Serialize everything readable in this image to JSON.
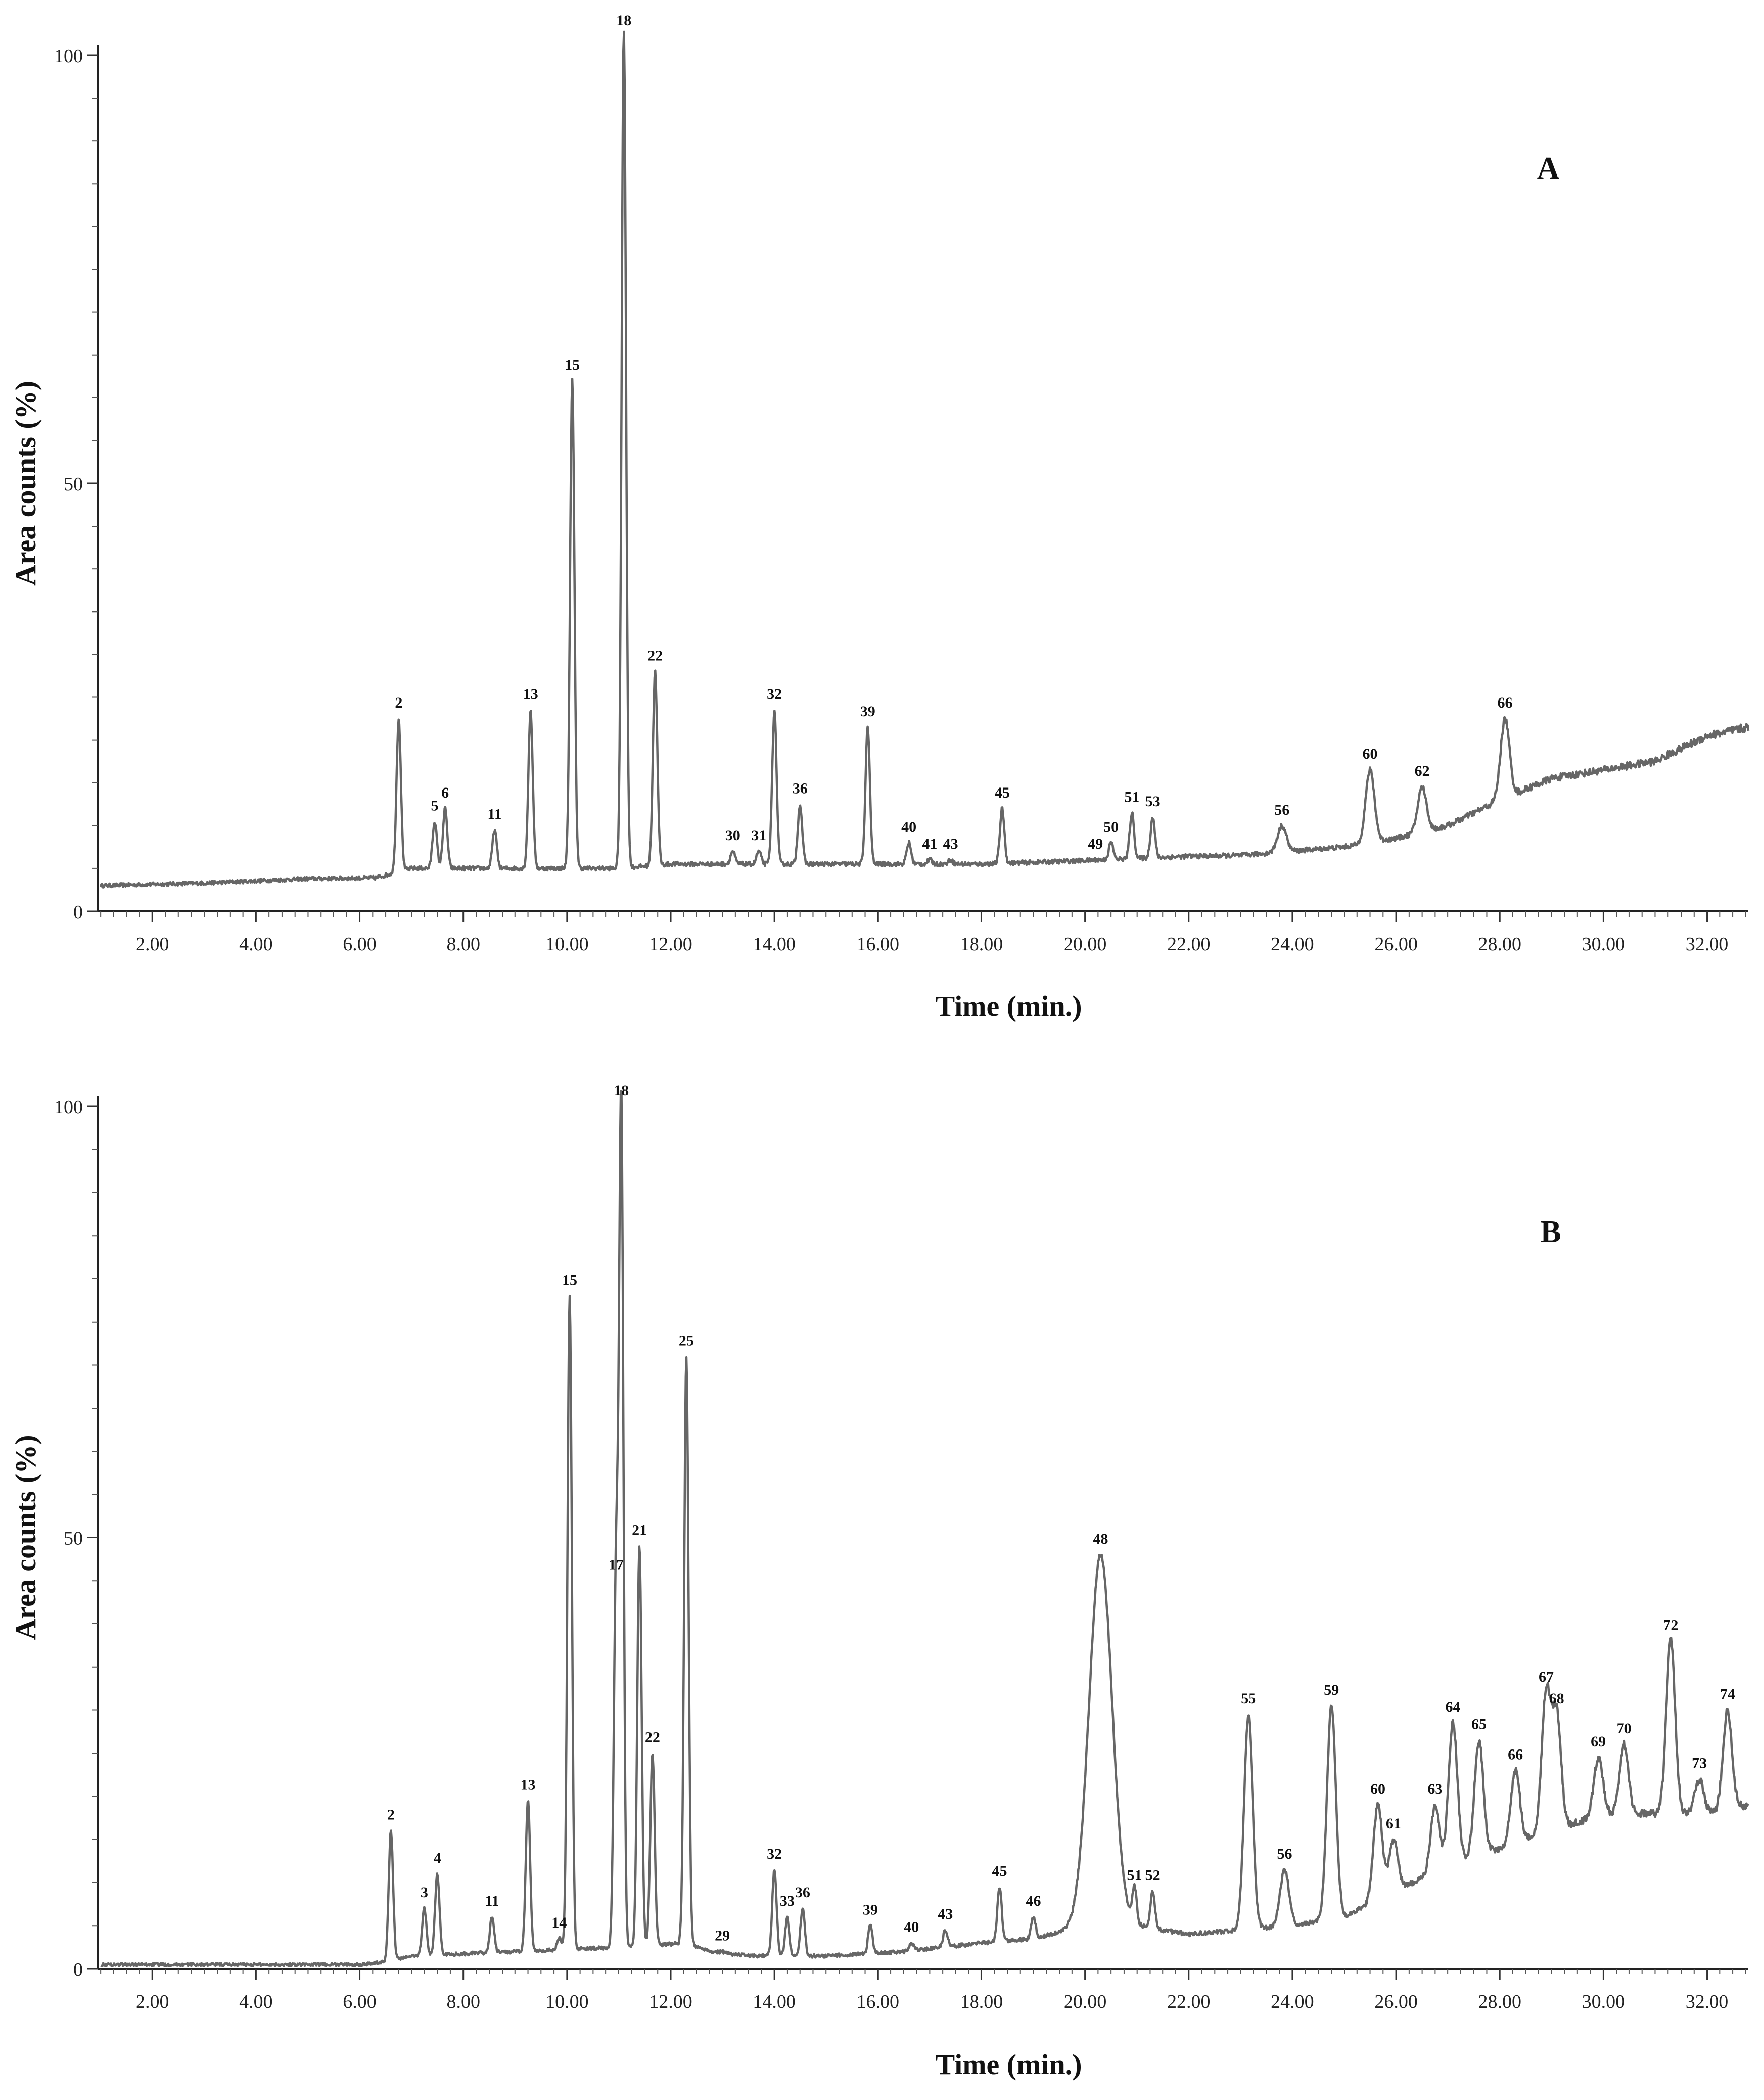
{
  "figure": {
    "description_text": ""
  },
  "chart_data": [
    {
      "id": "A",
      "type": "line",
      "panel_label": "A",
      "xlabel": "Time (min.)",
      "ylabel": "Area counts (%)",
      "xlim": [
        0.95,
        32.8
      ],
      "ylim": [
        0,
        100
      ],
      "x_ticks": [
        "2.00",
        "4.00",
        "6.00",
        "8.00",
        "10.00",
        "12.00",
        "14.00",
        "16.00",
        "18.00",
        "20.00",
        "22.00",
        "24.00",
        "26.00",
        "28.00",
        "30.00",
        "32.00"
      ],
      "y_ticks": [
        "0",
        "50",
        "100"
      ],
      "baseline": [
        [
          1.0,
          3
        ],
        [
          3.0,
          3.3
        ],
        [
          5.0,
          3.8
        ],
        [
          6.3,
          3.9
        ],
        [
          7.0,
          5
        ],
        [
          9.0,
          5
        ],
        [
          11.0,
          5
        ],
        [
          12.0,
          5.5
        ],
        [
          14.0,
          5.5
        ],
        [
          16.0,
          5.5
        ],
        [
          18.0,
          5.5
        ],
        [
          20.0,
          5.9
        ],
        [
          22.0,
          6.4
        ],
        [
          23.0,
          6.5
        ],
        [
          24.0,
          7
        ],
        [
          25.0,
          7.5
        ],
        [
          26.0,
          8.5
        ],
        [
          27.0,
          10
        ],
        [
          28.0,
          13
        ],
        [
          29.0,
          15.5
        ],
        [
          30.0,
          16.5
        ],
        [
          31.0,
          17.5
        ],
        [
          32.0,
          20.5
        ],
        [
          32.8,
          21.5
        ]
      ],
      "peaks": [
        {
          "label": "2",
          "x": 6.75,
          "y": 22.5
        },
        {
          "label": "5",
          "x": 7.45,
          "y": 10.5
        },
        {
          "label": "6",
          "x": 7.65,
          "y": 12
        },
        {
          "label": "11",
          "x": 8.6,
          "y": 9.5
        },
        {
          "label": "13",
          "x": 9.3,
          "y": 23.5
        },
        {
          "label": "15",
          "x": 10.1,
          "y": 62
        },
        {
          "label": "18",
          "x": 11.1,
          "y": 103
        },
        {
          "label": "22",
          "x": 11.7,
          "y": 28
        },
        {
          "label": "30",
          "x": 13.2,
          "y": 7
        },
        {
          "label": "31",
          "x": 13.7,
          "y": 7
        },
        {
          "label": "32",
          "x": 14.0,
          "y": 23.5
        },
        {
          "label": "36",
          "x": 14.5,
          "y": 12.5
        },
        {
          "label": "39",
          "x": 15.8,
          "y": 21.5
        },
        {
          "label": "40",
          "x": 16.6,
          "y": 8
        },
        {
          "label": "41",
          "x": 17.0,
          "y": 6
        },
        {
          "label": "43",
          "x": 17.4,
          "y": 6
        },
        {
          "label": "45",
          "x": 18.4,
          "y": 12
        },
        {
          "label": "49",
          "x": 20.2,
          "y": 6
        },
        {
          "label": "50",
          "x": 20.5,
          "y": 8
        },
        {
          "label": "51",
          "x": 20.9,
          "y": 11.5
        },
        {
          "label": "53",
          "x": 21.3,
          "y": 11
        },
        {
          "label": "56",
          "x": 23.8,
          "y": 10
        },
        {
          "label": "60",
          "x": 25.5,
          "y": 16.5
        },
        {
          "label": "62",
          "x": 26.5,
          "y": 14.5
        },
        {
          "label": "66",
          "x": 28.1,
          "y": 22.5
        }
      ]
    },
    {
      "id": "B",
      "type": "line",
      "panel_label": "B",
      "xlabel": "Time (min.)",
      "ylabel": "Area counts (%)",
      "xlim": [
        0.95,
        32.8
      ],
      "ylim": [
        0,
        100
      ],
      "x_ticks": [
        "2.00",
        "4.00",
        "6.00",
        "8.00",
        "10.00",
        "12.00",
        "14.00",
        "16.00",
        "18.00",
        "20.00",
        "22.00",
        "24.00",
        "26.00",
        "28.00",
        "30.00",
        "32.00"
      ],
      "y_ticks": [
        "0",
        "50",
        "100"
      ],
      "baseline": [
        [
          1.0,
          0.5
        ],
        [
          6.0,
          0.5
        ],
        [
          6.5,
          0.8
        ],
        [
          7.0,
          1.5
        ],
        [
          9.0,
          2
        ],
        [
          11.0,
          2.5
        ],
        [
          12.3,
          3
        ],
        [
          12.8,
          2
        ],
        [
          13.5,
          1.5
        ],
        [
          15.0,
          1.5
        ],
        [
          16.5,
          2
        ],
        [
          18.0,
          3
        ],
        [
          19.0,
          3.5
        ],
        [
          20.0,
          5
        ],
        [
          21.0,
          5
        ],
        [
          22.0,
          4
        ],
        [
          23.0,
          4.5
        ],
        [
          24.0,
          5
        ],
        [
          25.0,
          6
        ],
        [
          26.0,
          9
        ],
        [
          27.0,
          12
        ],
        [
          28.0,
          14
        ],
        [
          29.0,
          16
        ],
        [
          30.0,
          18
        ],
        [
          31.0,
          18
        ],
        [
          32.0,
          18
        ],
        [
          32.8,
          19
        ]
      ],
      "peaks": [
        {
          "label": "2",
          "x": 6.6,
          "y": 16
        },
        {
          "label": "3",
          "x": 7.25,
          "y": 7
        },
        {
          "label": "4",
          "x": 7.5,
          "y": 11
        },
        {
          "label": "11",
          "x": 8.55,
          "y": 6
        },
        {
          "label": "13",
          "x": 9.25,
          "y": 19.5
        },
        {
          "label": "14",
          "x": 9.85,
          "y": 3.5
        },
        {
          "label": "15",
          "x": 10.05,
          "y": 78
        },
        {
          "label": "17",
          "x": 10.95,
          "y": 45
        },
        {
          "label": "18",
          "x": 11.05,
          "y": 100
        },
        {
          "label": "21",
          "x": 11.4,
          "y": 49
        },
        {
          "label": "22",
          "x": 11.65,
          "y": 25
        },
        {
          "label": "25",
          "x": 12.3,
          "y": 71
        },
        {
          "label": "29",
          "x": 13.0,
          "y": 2
        },
        {
          "label": "32",
          "x": 14.0,
          "y": 11.5
        },
        {
          "label": "33",
          "x": 14.25,
          "y": 6
        },
        {
          "label": "36",
          "x": 14.55,
          "y": 7
        },
        {
          "label": "39",
          "x": 15.85,
          "y": 5
        },
        {
          "label": "40",
          "x": 16.65,
          "y": 3
        },
        {
          "label": "43",
          "x": 17.3,
          "y": 4.5
        },
        {
          "label": "45",
          "x": 18.35,
          "y": 9.5
        },
        {
          "label": "46",
          "x": 19.0,
          "y": 6
        },
        {
          "label": "48",
          "x": 20.3,
          "y": 48
        },
        {
          "label": "51",
          "x": 20.95,
          "y": 9
        },
        {
          "label": "52",
          "x": 21.3,
          "y": 9
        },
        {
          "label": "55",
          "x": 23.15,
          "y": 29.5
        },
        {
          "label": "56",
          "x": 23.85,
          "y": 11.5
        },
        {
          "label": "59",
          "x": 24.75,
          "y": 30.5
        },
        {
          "label": "60",
          "x": 25.65,
          "y": 19
        },
        {
          "label": "61",
          "x": 25.95,
          "y": 15
        },
        {
          "label": "63",
          "x": 26.75,
          "y": 19
        },
        {
          "label": "64",
          "x": 27.1,
          "y": 28.5
        },
        {
          "label": "65",
          "x": 27.6,
          "y": 26.5
        },
        {
          "label": "66",
          "x": 28.3,
          "y": 23
        },
        {
          "label": "67",
          "x": 28.9,
          "y": 32
        },
        {
          "label": "68",
          "x": 29.1,
          "y": 29.5
        },
        {
          "label": "69",
          "x": 29.9,
          "y": 24.5
        },
        {
          "label": "70",
          "x": 30.4,
          "y": 26
        },
        {
          "label": "72",
          "x": 31.3,
          "y": 38
        },
        {
          "label": "73",
          "x": 31.85,
          "y": 22
        },
        {
          "label": "74",
          "x": 32.4,
          "y": 30
        }
      ]
    }
  ]
}
